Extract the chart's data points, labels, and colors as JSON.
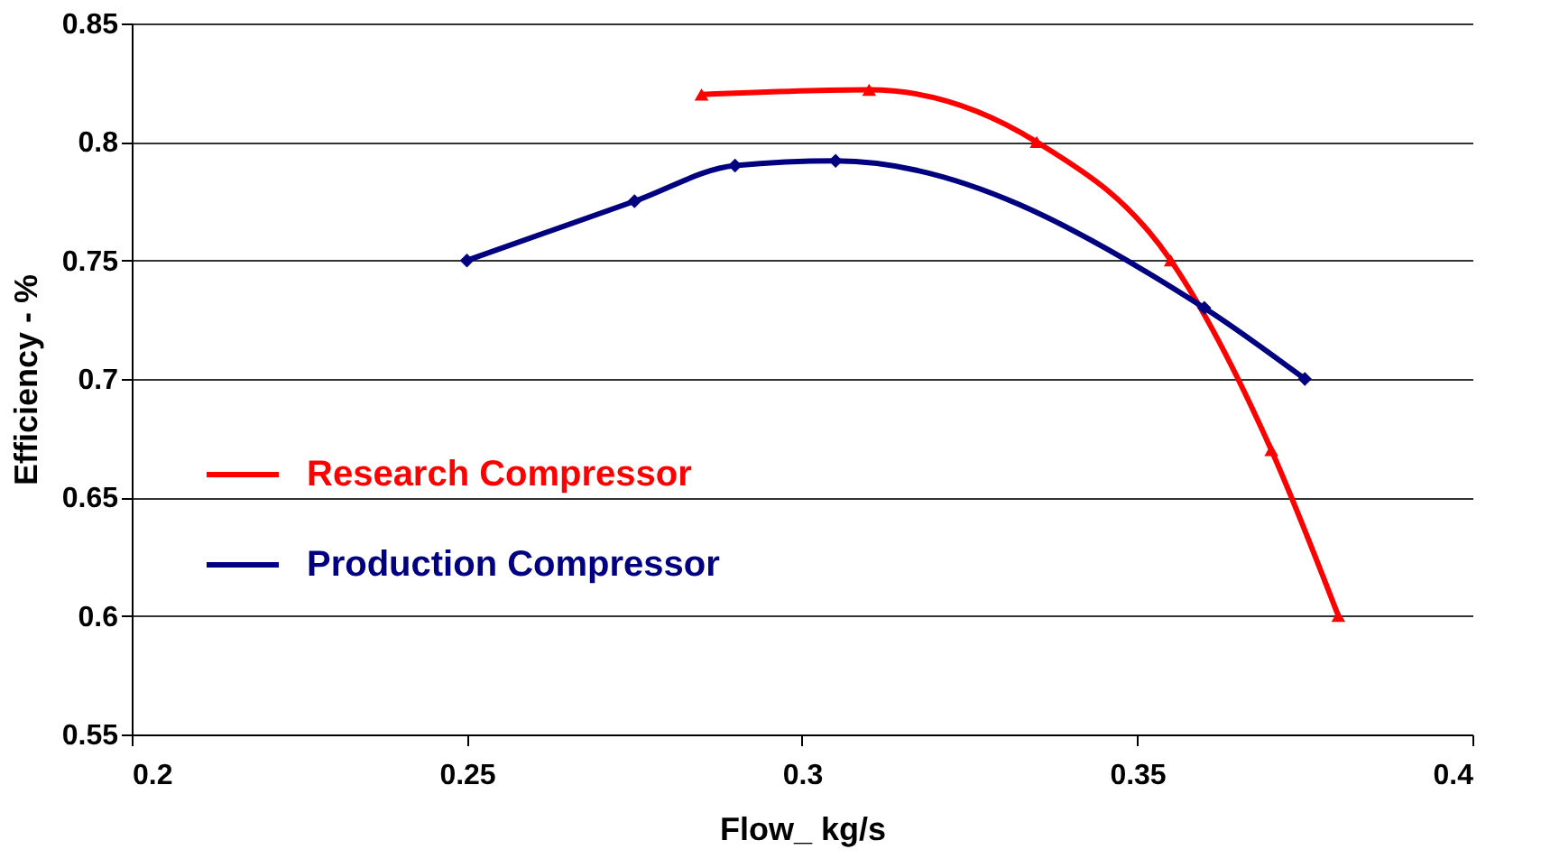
{
  "chart_data": {
    "type": "line",
    "xlabel": "Flow_  kg/s",
    "ylabel": "Efficiency - %",
    "xlim": [
      0.2,
      0.4
    ],
    "xticks": [
      0.2,
      0.25,
      0.3,
      0.35,
      0.4
    ],
    "ylim": [
      0.55,
      0.85
    ],
    "yticks": [
      0.55,
      0.6,
      0.65,
      0.7,
      0.75,
      0.8,
      0.85
    ],
    "grid": "y",
    "legend": "left",
    "line_style": "solid",
    "series": [
      {
        "name": "Research Compressor",
        "color": "#ff0000",
        "marker": "triangle",
        "x": [
          0.285,
          0.31,
          0.335,
          0.355,
          0.37,
          0.38
        ],
        "values": [
          0.82,
          0.822,
          0.8,
          0.75,
          0.67,
          0.6
        ]
      },
      {
        "name": "Production Compressor",
        "color": "#000080",
        "marker": "diamond",
        "x": [
          0.25,
          0.275,
          0.29,
          0.305,
          0.36,
          0.375
        ],
        "values": [
          0.75,
          0.775,
          0.79,
          0.792,
          0.73,
          0.7
        ]
      }
    ]
  }
}
